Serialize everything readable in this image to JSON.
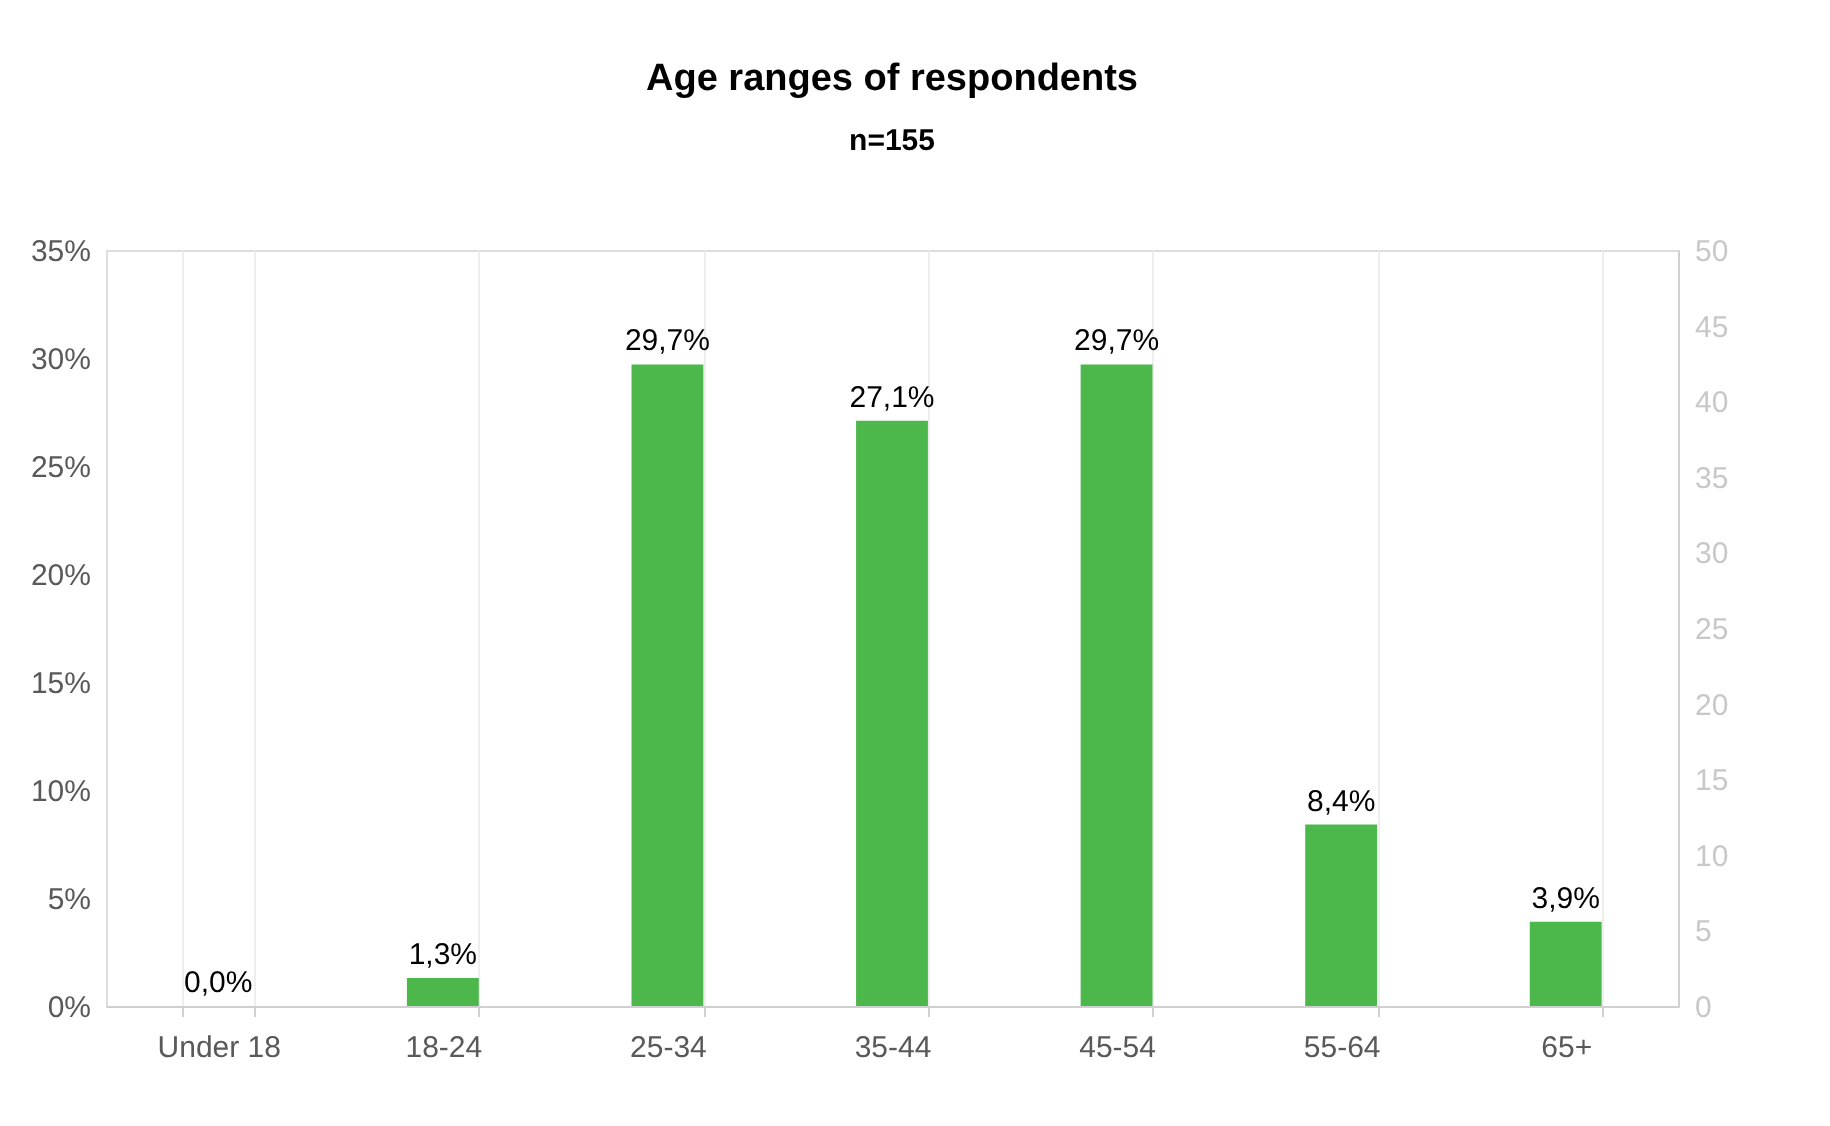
{
  "chart_data": {
    "type": "bar",
    "title": "Age ranges of respondents",
    "subtitle": "n=155",
    "categories": [
      "Under 18",
      "18-24",
      "25-34",
      "35-44",
      "45-54",
      "55-64",
      "65+"
    ],
    "values": [
      0,
      1.3,
      29.7,
      27.1,
      29.7,
      8.4,
      3.9
    ],
    "value_labels": [
      "0,0%",
      "1,3%",
      "29,7%",
      "27,1%",
      "29,7%",
      "8,4%",
      "3,9%"
    ],
    "color": "#4cb84c",
    "ylim": [
      0,
      35
    ],
    "yticks": [
      {
        "value": 0,
        "label": "0%"
      },
      {
        "value": 5,
        "label": "5%"
      },
      {
        "value": 10,
        "label": "10%"
      },
      {
        "value": 15,
        "label": "15%"
      },
      {
        "value": 20,
        "label": "20%"
      },
      {
        "value": 25,
        "label": "25%"
      },
      {
        "value": 30,
        "label": "30%"
      },
      {
        "value": 35,
        "label": "35%"
      }
    ],
    "y2lim": [
      0,
      50
    ],
    "y2ticks": [
      0,
      5,
      10,
      15,
      20,
      25,
      30,
      35,
      40,
      45,
      50
    ],
    "grid": "x"
  }
}
